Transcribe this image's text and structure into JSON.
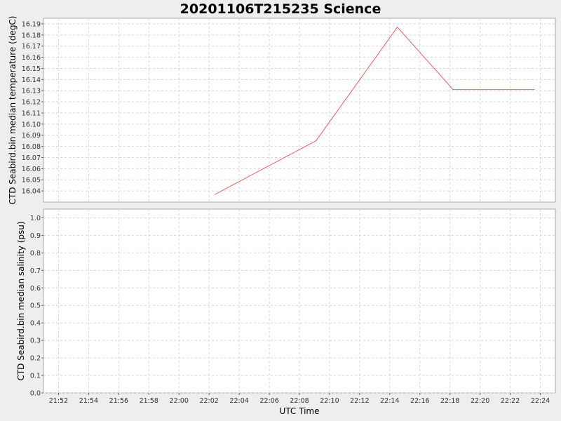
{
  "title": "20201106T215235 Science",
  "chart_data": [
    {
      "type": "line",
      "ylabel": "CTD Seabird.bin median temperature (degC)",
      "ylim": [
        16.03,
        16.195
      ],
      "yticks": [
        "16.04",
        "16.05",
        "16.06",
        "16.07",
        "16.08",
        "16.09",
        "16.10",
        "16.11",
        "16.12",
        "16.13",
        "16.14",
        "16.15",
        "16.16",
        "16.17",
        "16.18",
        "16.19"
      ],
      "grid": true,
      "series": [
        {
          "color": "#f06060",
          "points": [
            {
              "x": "22:02:24",
              "y": 16.037
            },
            {
              "x": "22:09:06",
              "y": 16.085
            },
            {
              "x": "22:14:30",
              "y": 16.187
            },
            {
              "x": "22:18:12",
              "y": 16.131
            },
            {
              "x": "22:23:36",
              "y": 16.131
            }
          ]
        }
      ]
    },
    {
      "type": "line",
      "ylabel": "CTD Seabird.bin median salinity (psu)",
      "ylim": [
        0,
        1.05
      ],
      "yticks": [
        "0.0",
        "0.1",
        "0.2",
        "0.3",
        "0.4",
        "0.5",
        "0.6",
        "0.7",
        "0.8",
        "0.9",
        "1.0"
      ],
      "grid": true,
      "series": []
    }
  ],
  "x_axis": {
    "label": "UTC Time",
    "range": [
      "21:51:00",
      "22:25:00"
    ],
    "ticks": [
      "21:52",
      "21:54",
      "21:56",
      "21:58",
      "22:00",
      "22:02",
      "22:04",
      "22:06",
      "22:08",
      "22:10",
      "22:12",
      "22:14",
      "22:16",
      "22:18",
      "22:20",
      "22:22",
      "22:24"
    ]
  }
}
